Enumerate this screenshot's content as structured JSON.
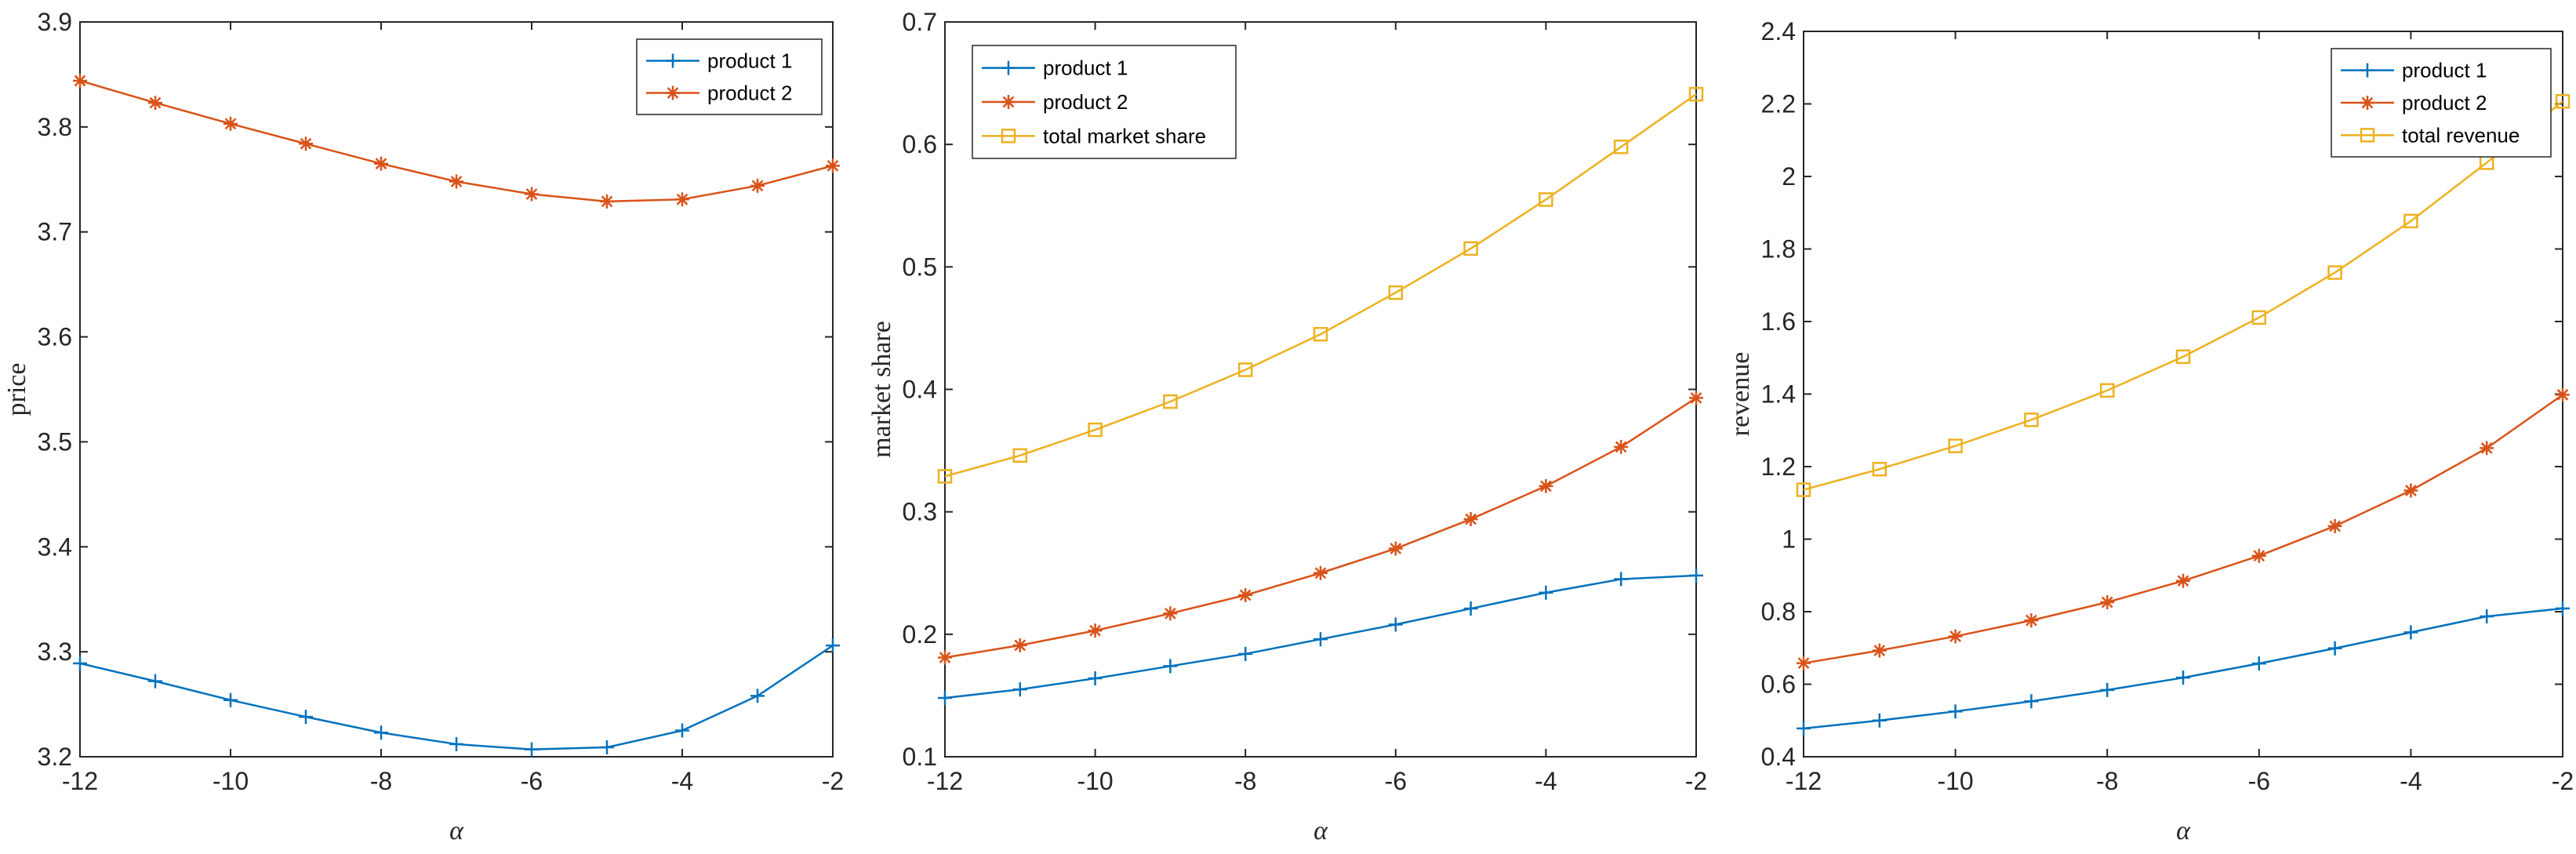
{
  "chart_data": [
    {
      "type": "line",
      "title": "",
      "xlabel": "α",
      "ylabel": "price",
      "x": [
        -12,
        -11,
        -10,
        -9,
        -8,
        -7,
        -6,
        -5,
        -4,
        -3,
        -2
      ],
      "xlim": [
        -12,
        -2
      ],
      "ylim": [
        3.2,
        3.9
      ],
      "xticks": [
        -12,
        -10,
        -8,
        -6,
        -4,
        -2
      ],
      "yticks": [
        3.2,
        3.3,
        3.4,
        3.5,
        3.6,
        3.7,
        3.8,
        3.9
      ],
      "ytick_labels": [
        "3.2",
        "3.3",
        "3.4",
        "3.5",
        "3.6",
        "3.7",
        "3.8",
        "3.9"
      ],
      "legend_position": "top-right",
      "series": [
        {
          "name": "product 1",
          "color": "#0072BD",
          "marker": "plus",
          "values": [
            3.289,
            3.272,
            3.254,
            3.238,
            3.223,
            3.212,
            3.207,
            3.209,
            3.225,
            3.258,
            3.306
          ]
        },
        {
          "name": "product 2",
          "color": "#D95319",
          "marker": "asterisk",
          "values": [
            3.844,
            3.823,
            3.803,
            3.784,
            3.765,
            3.748,
            3.736,
            3.729,
            3.731,
            3.744,
            3.763
          ]
        }
      ]
    },
    {
      "type": "line",
      "title": "",
      "xlabel": "α",
      "ylabel": "market share",
      "x": [
        -12,
        -11,
        -10,
        -9,
        -8,
        -7,
        -6,
        -5,
        -4,
        -3,
        -2
      ],
      "xlim": [
        -12,
        -2
      ],
      "ylim": [
        0.1,
        0.7
      ],
      "xticks": [
        -12,
        -10,
        -8,
        -6,
        -4,
        -2
      ],
      "yticks": [
        0.1,
        0.2,
        0.3,
        0.4,
        0.5,
        0.6,
        0.7
      ],
      "ytick_labels": [
        "0.1",
        "0.2",
        "0.3",
        "0.4",
        "0.5",
        "0.6",
        "0.7"
      ],
      "legend_position": "top-left",
      "series": [
        {
          "name": "product 1",
          "color": "#0072BD",
          "marker": "plus",
          "values": [
            0.148,
            0.155,
            0.164,
            0.174,
            0.184,
            0.196,
            0.208,
            0.221,
            0.234,
            0.245,
            0.248
          ]
        },
        {
          "name": "product 2",
          "color": "#D95319",
          "marker": "asterisk",
          "values": [
            0.181,
            0.191,
            0.203,
            0.217,
            0.232,
            0.25,
            0.27,
            0.294,
            0.321,
            0.353,
            0.393
          ]
        },
        {
          "name": "total market share",
          "color": "#EDB120",
          "marker": "square",
          "values": [
            0.329,
            0.346,
            0.367,
            0.39,
            0.416,
            0.445,
            0.479,
            0.515,
            0.555,
            0.598,
            0.641
          ]
        }
      ]
    },
    {
      "type": "line",
      "title": "",
      "xlabel": "α",
      "ylabel": "revenue",
      "x": [
        -12,
        -11,
        -10,
        -9,
        -8,
        -7,
        -6,
        -5,
        -4,
        -3,
        -2
      ],
      "xlim": [
        -12,
        -2
      ],
      "ylim": [
        0.4,
        2.4
      ],
      "xticks": [
        -12,
        -10,
        -8,
        -6,
        -4,
        -2
      ],
      "yticks": [
        0.4,
        0.6,
        0.8,
        1.0,
        1.2,
        1.4,
        1.6,
        1.8,
        2.0,
        2.2,
        2.4
      ],
      "ytick_labels": [
        "0.4",
        "0.6",
        "0.8",
        "1",
        "1.2",
        "1.4",
        "1.6",
        "1.8",
        "2",
        "2.2",
        "2.4"
      ],
      "legend_position": "top-right",
      "series": [
        {
          "name": "product 1",
          "color": "#0072BD",
          "marker": "plus",
          "values": [
            0.478,
            0.5,
            0.525,
            0.553,
            0.584,
            0.618,
            0.657,
            0.699,
            0.743,
            0.787,
            0.809
          ]
        },
        {
          "name": "product 2",
          "color": "#D95319",
          "marker": "asterisk",
          "values": [
            0.658,
            0.693,
            0.732,
            0.776,
            0.826,
            0.885,
            0.954,
            1.036,
            1.134,
            1.251,
            1.398
          ]
        },
        {
          "name": "total revenue",
          "color": "#EDB120",
          "marker": "square",
          "values": [
            1.136,
            1.193,
            1.257,
            1.329,
            1.41,
            1.503,
            1.611,
            1.735,
            1.877,
            2.038,
            2.207
          ]
        }
      ]
    }
  ]
}
